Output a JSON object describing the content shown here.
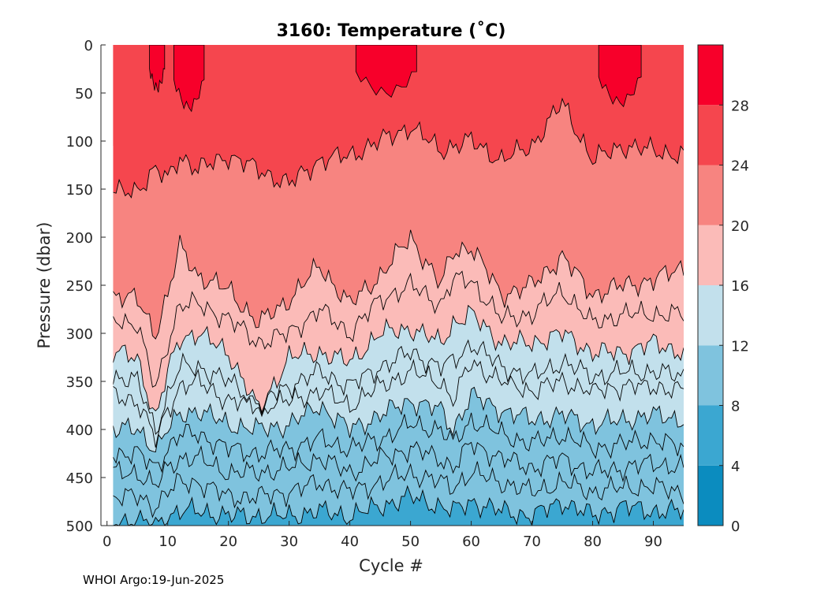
{
  "chart_data": {
    "type": "filled-contour",
    "title": "3160:  Temperature (˚C)",
    "xlabel": "Cycle #",
    "ylabel": "Pressure (dbar)",
    "xlim": [
      -1,
      95
    ],
    "ylim": [
      0,
      500
    ],
    "y_reversed": true,
    "x_ticks": [
      0,
      10,
      20,
      30,
      40,
      50,
      60,
      70,
      80,
      90
    ],
    "y_ticks": [
      0,
      50,
      100,
      150,
      200,
      250,
      300,
      350,
      400,
      450,
      500
    ],
    "colorbar": {
      "range": [
        0,
        32
      ],
      "ticks": [
        0,
        4,
        8,
        12,
        16,
        20,
        24,
        28
      ],
      "bands": [
        {
          "from": 0,
          "to": 4,
          "color": "#0b8cbf"
        },
        {
          "from": 4,
          "to": 8,
          "color": "#3ba7d1"
        },
        {
          "from": 8,
          "to": 12,
          "color": "#7fc3de"
        },
        {
          "from": 12,
          "to": 16,
          "color": "#c2e0ec"
        },
        {
          "from": 16,
          "to": 20,
          "color": "#fbbbb8"
        },
        {
          "from": 20,
          "to": 24,
          "color": "#f78480"
        },
        {
          "from": 24,
          "to": 28,
          "color": "#f5464e"
        },
        {
          "from": 28,
          "to": 32,
          "color": "#f7002a"
        }
      ]
    },
    "isotherms_dbar": {
      "cycles": [
        1,
        5,
        8,
        10,
        12,
        15,
        20,
        25,
        30,
        35,
        40,
        45,
        50,
        55,
        57,
        60,
        65,
        70,
        75,
        80,
        85,
        90,
        95
      ],
      "t24": [
        155,
        150,
        130,
        140,
        115,
        130,
        115,
        130,
        145,
        120,
        115,
        100,
        85,
        110,
        105,
        100,
        120,
        105,
        60,
        120,
        105,
        110,
        115
      ],
      "t20": [
        260,
        265,
        300,
        260,
        210,
        240,
        255,
        290,
        265,
        230,
        270,
        240,
        200,
        250,
        215,
        210,
        260,
        250,
        220,
        260,
        250,
        245,
        230
      ],
      "t18": [
        285,
        290,
        360,
        310,
        270,
        270,
        285,
        310,
        300,
        275,
        300,
        265,
        250,
        270,
        245,
        245,
        285,
        280,
        255,
        290,
        280,
        280,
        280
      ],
      "t16": [
        320,
        325,
        390,
        340,
        305,
        300,
        320,
        380,
        325,
        320,
        330,
        300,
        295,
        310,
        290,
        280,
        310,
        310,
        300,
        320,
        320,
        310,
        320
      ],
      "t14": [
        345,
        350,
        400,
        365,
        335,
        335,
        350,
        370,
        355,
        340,
        355,
        335,
        320,
        335,
        330,
        310,
        335,
        345,
        330,
        345,
        340,
        340,
        345
      ],
      "t13": [
        365,
        370,
        410,
        380,
        355,
        350,
        370,
        375,
        370,
        360,
        375,
        355,
        340,
        350,
        370,
        330,
        350,
        360,
        350,
        360,
        355,
        355,
        360
      ],
      "t12": [
        400,
        400,
        420,
        400,
        385,
        380,
        395,
        400,
        395,
        375,
        400,
        385,
        370,
        380,
        400,
        365,
        380,
        390,
        385,
        395,
        390,
        385,
        390
      ],
      "t11": [
        425,
        425,
        440,
        420,
        405,
        405,
        420,
        425,
        420,
        410,
        420,
        410,
        395,
        400,
        415,
        390,
        405,
        415,
        405,
        420,
        415,
        410,
        420
      ],
      "t10": [
        445,
        445,
        460,
        440,
        430,
        430,
        445,
        445,
        440,
        430,
        445,
        430,
        420,
        430,
        440,
        415,
        430,
        440,
        430,
        445,
        440,
        435,
        440
      ],
      "t9": [
        470,
        470,
        480,
        465,
        455,
        455,
        470,
        470,
        465,
        455,
        465,
        455,
        445,
        455,
        460,
        445,
        455,
        465,
        455,
        465,
        460,
        460,
        465
      ],
      "t8": [
        495,
        495,
        500,
        490,
        485,
        485,
        490,
        490,
        490,
        485,
        490,
        480,
        470,
        480,
        485,
        475,
        485,
        490,
        475,
        490,
        480,
        485,
        485
      ]
    },
    "warm_patches_above_28C": [
      {
        "from_cycle": 7,
        "to_cycle": 9.5,
        "max_depth_dbar": 45
      },
      {
        "from_cycle": 11,
        "to_cycle": 16,
        "max_depth_dbar": 65
      },
      {
        "from_cycle": 41,
        "to_cycle": 51,
        "max_depth_dbar": 50
      },
      {
        "from_cycle": 81,
        "to_cycle": 88,
        "max_depth_dbar": 60
      }
    ]
  },
  "footer": "WHOI Argo:19-Jun-2025",
  "colors": {
    "axis": "#262626",
    "contour_line": "#000000",
    "background": "#ffffff"
  }
}
